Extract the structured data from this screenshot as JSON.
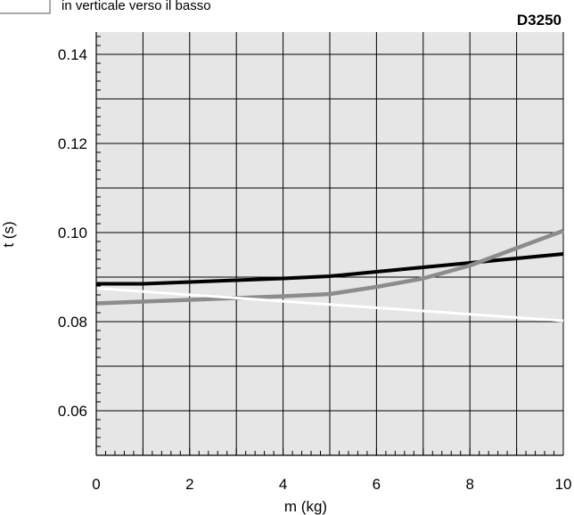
{
  "chart_data": {
    "type": "line",
    "code": "D3250",
    "legend_partial_text": "in verticale verso il basso",
    "xlabel": "m (kg)",
    "ylabel": "t (s)",
    "xlim": [
      0,
      10
    ],
    "ylim": [
      0.05,
      0.145
    ],
    "x_ticks": [
      "0",
      "2",
      "4",
      "6",
      "8",
      "10"
    ],
    "y_ticks": [
      "0.06",
      "0.08",
      "0.10",
      "0.12",
      "0.14"
    ],
    "grid": true,
    "plot_background": "#e6e6e6",
    "series": [
      {
        "color": "#000000",
        "x": [
          0,
          1,
          2,
          3,
          4,
          5,
          6,
          7,
          8,
          9,
          10
        ],
        "y": [
          0.0885,
          0.0885,
          0.0889,
          0.0893,
          0.0897,
          0.0902,
          0.0912,
          0.0922,
          0.0932,
          0.0942,
          0.0952
        ]
      },
      {
        "color": "#8c8c8c",
        "x": [
          0,
          1,
          2,
          3,
          4,
          5,
          6,
          7,
          8,
          9,
          10
        ],
        "y": [
          0.0841,
          0.0845,
          0.0849,
          0.0853,
          0.0857,
          0.0862,
          0.0878,
          0.0897,
          0.0926,
          0.0965,
          0.1004
        ]
      },
      {
        "color": "#ffffff",
        "x": [
          0,
          10
        ],
        "y": [
          0.0875,
          0.0802
        ]
      }
    ]
  }
}
